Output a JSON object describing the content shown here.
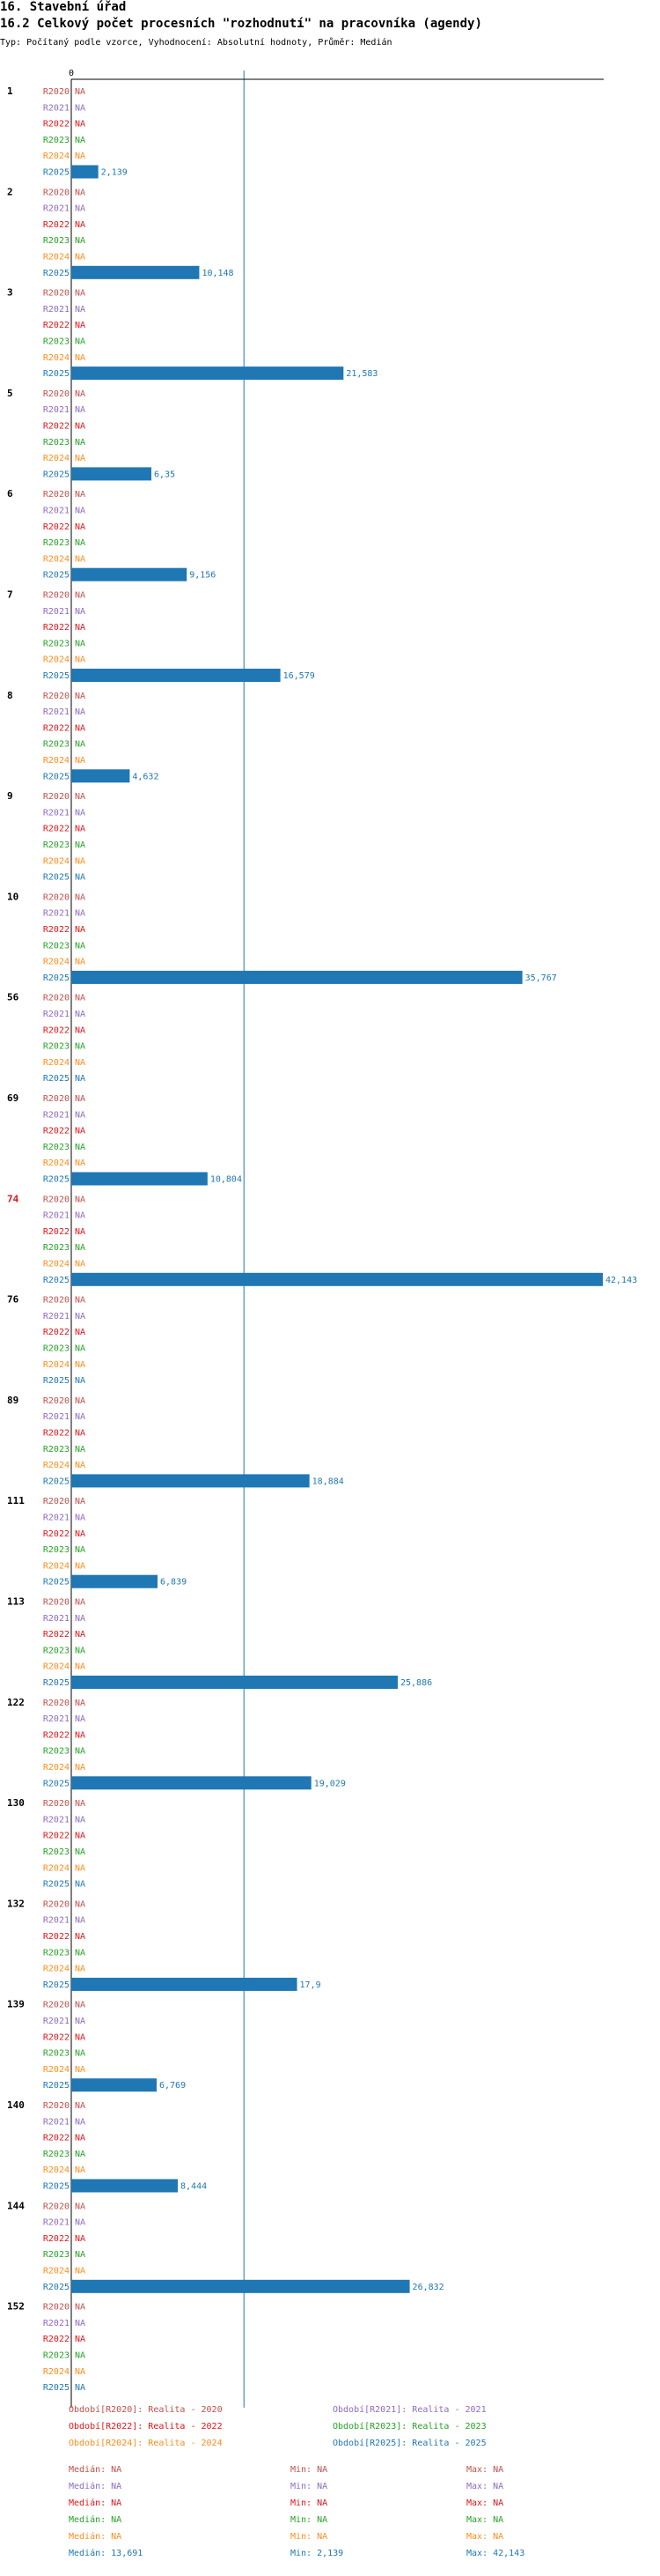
{
  "page": {
    "title": "16. Stavební úřad",
    "subtitle": "16.2 Celkový počet procesních \"rozhodnutí\" na pracovníka (agendy)",
    "type_line": "Typ: Počítaný podle vzorce, Vyhodnocení: Absolutní hodnoty, Průměr: Medián"
  },
  "chart_data": {
    "type": "bar",
    "orientation": "horizontal",
    "x_zero_label": "0",
    "xlim": [
      0,
      42.143
    ],
    "median_line": 13.691,
    "na_label": "NA",
    "series_labels": [
      "R2020",
      "R2021",
      "R2022",
      "R2023",
      "R2024",
      "R2025"
    ],
    "series_colors": [
      "#c0504d",
      "#8e6bbf",
      "#e0141a",
      "#27a227",
      "#ff8c1a",
      "#1f77b4"
    ],
    "categories": [
      {
        "label": "1",
        "values": [
          null,
          null,
          null,
          null,
          null,
          2.139
        ],
        "labels": [
          "NA",
          "NA",
          "NA",
          "NA",
          "NA",
          "2,139"
        ]
      },
      {
        "label": "2",
        "values": [
          null,
          null,
          null,
          null,
          null,
          10.148
        ],
        "labels": [
          "NA",
          "NA",
          "NA",
          "NA",
          "NA",
          "10,148"
        ]
      },
      {
        "label": "3",
        "values": [
          null,
          null,
          null,
          null,
          null,
          21.583
        ],
        "labels": [
          "NA",
          "NA",
          "NA",
          "NA",
          "NA",
          "21,583"
        ]
      },
      {
        "label": "5",
        "values": [
          null,
          null,
          null,
          null,
          null,
          6.35
        ],
        "labels": [
          "NA",
          "NA",
          "NA",
          "NA",
          "NA",
          "6,35"
        ]
      },
      {
        "label": "6",
        "values": [
          null,
          null,
          null,
          null,
          null,
          9.156
        ],
        "labels": [
          "NA",
          "NA",
          "NA",
          "NA",
          "NA",
          "9,156"
        ]
      },
      {
        "label": "7",
        "values": [
          null,
          null,
          null,
          null,
          null,
          16.579
        ],
        "labels": [
          "NA",
          "NA",
          "NA",
          "NA",
          "NA",
          "16,579"
        ]
      },
      {
        "label": "8",
        "values": [
          null,
          null,
          null,
          null,
          null,
          4.632
        ],
        "labels": [
          "NA",
          "NA",
          "NA",
          "NA",
          "NA",
          "4,632"
        ]
      },
      {
        "label": "9",
        "values": [
          null,
          null,
          null,
          null,
          null,
          null
        ],
        "labels": [
          "NA",
          "NA",
          "NA",
          "NA",
          "NA",
          "NA"
        ]
      },
      {
        "label": "10",
        "values": [
          null,
          null,
          null,
          null,
          null,
          35.767
        ],
        "labels": [
          "NA",
          "NA",
          "NA",
          "NA",
          "NA",
          "35,767"
        ]
      },
      {
        "label": "56",
        "values": [
          null,
          null,
          null,
          null,
          null,
          null
        ],
        "labels": [
          "NA",
          "NA",
          "NA",
          "NA",
          "NA",
          "NA"
        ]
      },
      {
        "label": "69",
        "values": [
          null,
          null,
          null,
          null,
          null,
          10.804
        ],
        "labels": [
          "NA",
          "NA",
          "NA",
          "NA",
          "NA",
          "10,804"
        ]
      },
      {
        "label": "74",
        "values": [
          null,
          null,
          null,
          null,
          null,
          42.143
        ],
        "labels": [
          "NA",
          "NA",
          "NA",
          "NA",
          "NA",
          "42,143"
        ],
        "highlight": true
      },
      {
        "label": "76",
        "values": [
          null,
          null,
          null,
          null,
          null,
          null
        ],
        "labels": [
          "NA",
          "NA",
          "NA",
          "NA",
          "NA",
          "NA"
        ]
      },
      {
        "label": "89",
        "values": [
          null,
          null,
          null,
          null,
          null,
          18.884
        ],
        "labels": [
          "NA",
          "NA",
          "NA",
          "NA",
          "NA",
          "18,884"
        ]
      },
      {
        "label": "111",
        "values": [
          null,
          null,
          null,
          null,
          null,
          6.839
        ],
        "labels": [
          "NA",
          "NA",
          "NA",
          "NA",
          "NA",
          "6,839"
        ]
      },
      {
        "label": "113",
        "values": [
          null,
          null,
          null,
          null,
          null,
          25.886
        ],
        "labels": [
          "NA",
          "NA",
          "NA",
          "NA",
          "NA",
          "25,886"
        ]
      },
      {
        "label": "122",
        "values": [
          null,
          null,
          null,
          null,
          null,
          19.029
        ],
        "labels": [
          "NA",
          "NA",
          "NA",
          "NA",
          "NA",
          "19,029"
        ]
      },
      {
        "label": "130",
        "values": [
          null,
          null,
          null,
          null,
          null,
          null
        ],
        "labels": [
          "NA",
          "NA",
          "NA",
          "NA",
          "NA",
          "NA"
        ]
      },
      {
        "label": "132",
        "values": [
          null,
          null,
          null,
          null,
          null,
          17.9
        ],
        "labels": [
          "NA",
          "NA",
          "NA",
          "NA",
          "NA",
          "17,9"
        ]
      },
      {
        "label": "139",
        "values": [
          null,
          null,
          null,
          null,
          null,
          6.769
        ],
        "labels": [
          "NA",
          "NA",
          "NA",
          "NA",
          "NA",
          "6,769"
        ]
      },
      {
        "label": "140",
        "values": [
          null,
          null,
          null,
          null,
          null,
          8.444
        ],
        "labels": [
          "NA",
          "NA",
          "NA",
          "NA",
          "NA",
          "8,444"
        ]
      },
      {
        "label": "144",
        "values": [
          null,
          null,
          null,
          null,
          null,
          26.832
        ],
        "labels": [
          "NA",
          "NA",
          "NA",
          "NA",
          "NA",
          "26,832"
        ]
      },
      {
        "label": "152",
        "values": [
          null,
          null,
          null,
          null,
          null,
          null
        ],
        "labels": [
          "NA",
          "NA",
          "NA",
          "NA",
          "NA",
          "NA"
        ]
      }
    ],
    "legend": [
      {
        "text": "Období[R2020]: Realita - 2020",
        "color": "#c0504d"
      },
      {
        "text": "Období[R2021]: Realita - 2021",
        "color": "#8e6bbf"
      },
      {
        "text": "Období[R2022]: Realita - 2022",
        "color": "#e0141a"
      },
      {
        "text": "Období[R2023]: Realita - 2023",
        "color": "#27a227"
      },
      {
        "text": "Období[R2024]: Realita - 2024",
        "color": "#ff8c1a"
      },
      {
        "text": "Období[R2025]: Realita - 2025",
        "color": "#1f77b4"
      }
    ],
    "stats": [
      {
        "median": "Medián: NA",
        "min": "Min: NA",
        "max": "Max: NA",
        "color": "#c0504d"
      },
      {
        "median": "Medián: NA",
        "min": "Min: NA",
        "max": "Max: NA",
        "color": "#8e6bbf"
      },
      {
        "median": "Medián: NA",
        "min": "Min: NA",
        "max": "Max: NA",
        "color": "#e0141a"
      },
      {
        "median": "Medián: NA",
        "min": "Min: NA",
        "max": "Max: NA",
        "color": "#27a227"
      },
      {
        "median": "Medián: NA",
        "min": "Min: NA",
        "max": "Max: NA",
        "color": "#ff8c1a"
      },
      {
        "median": "Medián: 13,691",
        "min": "Min: 2,139",
        "max": "Max: 42,143",
        "color": "#1f77b4"
      }
    ]
  }
}
